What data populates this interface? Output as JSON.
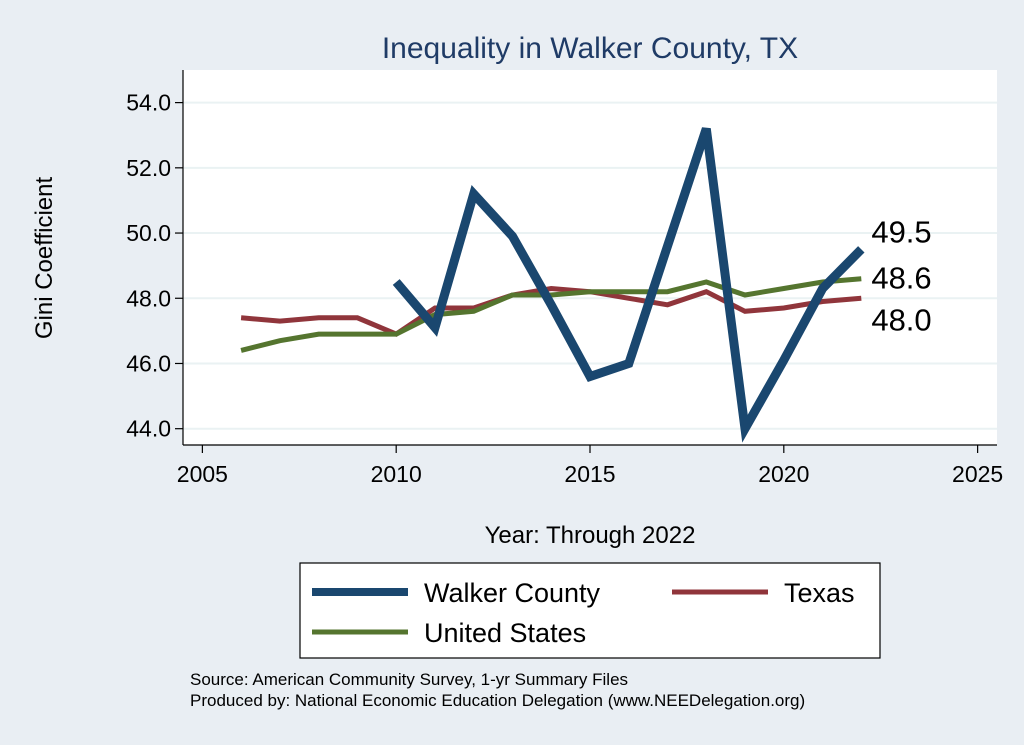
{
  "chart_data": {
    "type": "line",
    "title": "Inequality in Walker County, TX",
    "xlabel": "Year: Through 2022",
    "ylabel": "Gini Coefficient",
    "xlim": [
      2004.5,
      2025.5
    ],
    "ylim": [
      43.5,
      55.0
    ],
    "xticks": [
      "2005",
      "2010",
      "2015",
      "2020",
      "2025"
    ],
    "yticks": [
      "44.0",
      "46.0",
      "48.0",
      "50.0",
      "52.0",
      "54.0"
    ],
    "grid": true,
    "legend_position": "bottom",
    "series": [
      {
        "name": "Walker County",
        "color": "#1a476f",
        "end_label": "49.5",
        "x": [
          2010,
          2011,
          2012,
          2013,
          2014,
          2015,
          2016,
          2017,
          2018,
          2019,
          2020,
          2021,
          2022
        ],
        "values": [
          48.5,
          47.1,
          51.2,
          49.9,
          47.8,
          45.6,
          46.0,
          49.6,
          53.2,
          44.0,
          46.1,
          48.3,
          49.5
        ]
      },
      {
        "name": "Texas",
        "color": "#90353b",
        "end_label": "48.0",
        "x": [
          2006,
          2007,
          2008,
          2009,
          2010,
          2011,
          2012,
          2013,
          2014,
          2015,
          2016,
          2017,
          2018,
          2019,
          2020,
          2021,
          2022
        ],
        "values": [
          47.4,
          47.3,
          47.4,
          47.4,
          46.9,
          47.7,
          47.7,
          48.1,
          48.3,
          48.2,
          48.0,
          47.8,
          48.2,
          47.6,
          47.7,
          47.9,
          48.0
        ]
      },
      {
        "name": "United States",
        "color": "#55752f",
        "end_label": "48.6",
        "x": [
          2006,
          2007,
          2008,
          2009,
          2010,
          2011,
          2012,
          2013,
          2014,
          2015,
          2016,
          2017,
          2018,
          2019,
          2020,
          2021,
          2022
        ],
        "values": [
          46.4,
          46.7,
          46.9,
          46.9,
          46.9,
          47.5,
          47.6,
          48.1,
          48.1,
          48.2,
          48.2,
          48.2,
          48.5,
          48.1,
          48.3,
          48.5,
          48.6
        ]
      }
    ]
  },
  "footer": {
    "source": "Source: American Community Survey, 1-yr Summary Files",
    "produced_by": "Produced by: National Economic Education Delegation (www.NEEDelegation.org)"
  }
}
